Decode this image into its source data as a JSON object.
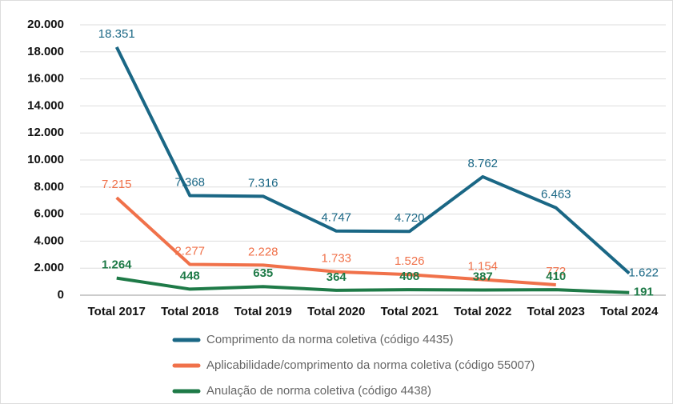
{
  "chart_data": {
    "type": "line",
    "categories": [
      "Total 2017",
      "Total 2018",
      "Total 2019",
      "Total 2020",
      "Total 2021",
      "Total 2022",
      "Total 2023",
      "Total 2024"
    ],
    "series": [
      {
        "name": "Comprimento da norma coletiva (código 4435)",
        "color": "#1a6785",
        "values": [
          18351,
          7368,
          7316,
          4747,
          4720,
          8762,
          6463,
          1622
        ],
        "value_labels": [
          "18.351",
          "7.368",
          "7.316",
          "4.747",
          "4.720",
          "8.762",
          "6.463",
          "1.622"
        ]
      },
      {
        "name": "Aplicabilidade/comprimento da norma coletiva (código 55007)",
        "color": "#f0714a",
        "values": [
          7215,
          2277,
          2228,
          1733,
          1526,
          1154,
          772,
          null
        ],
        "value_labels": [
          "7.215",
          "2.277",
          "2.228",
          "1.733",
          "1.526",
          "1.154",
          "772",
          null
        ]
      },
      {
        "name": "Anulação de norma coletiva (código 4438)",
        "color": "#1e7a47",
        "values": [
          1264,
          448,
          635,
          364,
          408,
          387,
          410,
          191
        ],
        "value_labels": [
          "1.264",
          "448",
          "635",
          "364",
          "408",
          "387",
          "410",
          "191"
        ]
      }
    ],
    "ylim": [
      0,
      20000
    ],
    "yticks": [
      0,
      {
        "value": 2000,
        "label": "2.000"
      },
      {
        "value": 4000,
        "label": "4.000"
      },
      {
        "value": 6000,
        "label": "6.000"
      },
      {
        "value": 8000,
        "label": "8.000"
      },
      {
        "value": 10000,
        "label": "10.000"
      },
      {
        "value": 12000,
        "label": "12.000"
      },
      {
        "value": 14000,
        "label": "14.000"
      },
      {
        "value": 16000,
        "label": "16.000"
      },
      {
        "value": 18000,
        "label": "18.000"
      },
      {
        "value": 20000,
        "label": "20.000"
      }
    ],
    "grid": true
  }
}
